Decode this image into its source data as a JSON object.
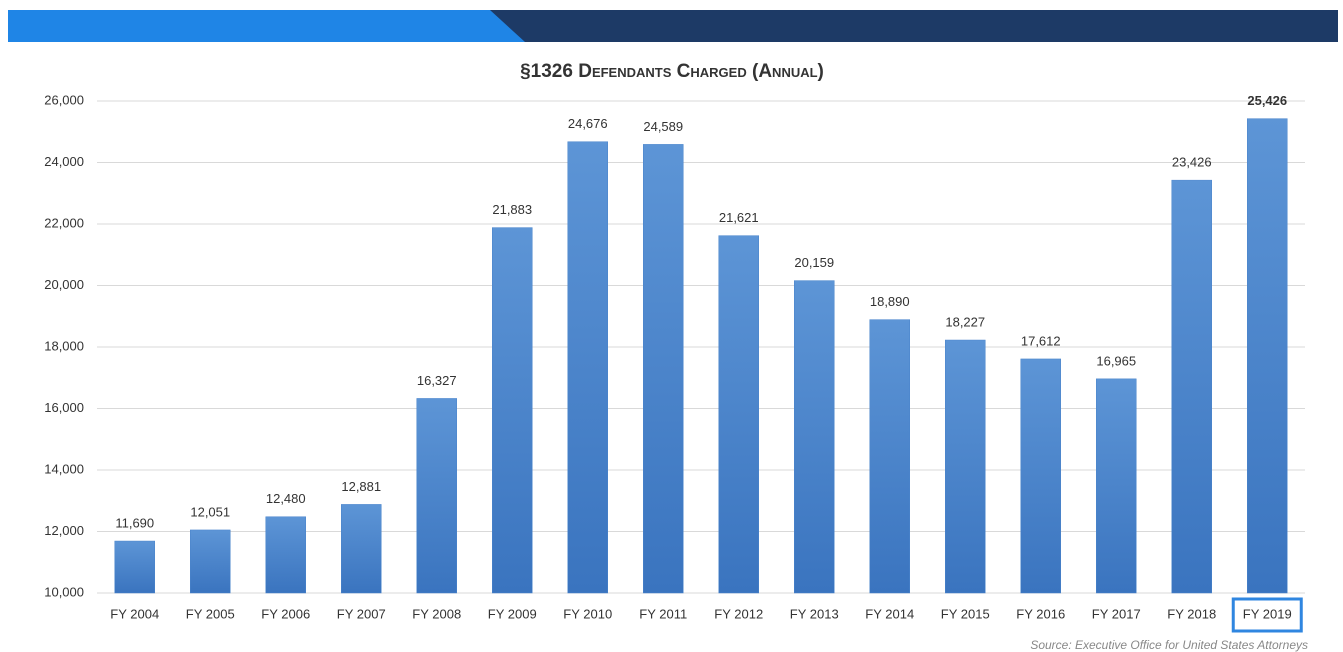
{
  "chart_data": {
    "type": "bar",
    "title": "§1326 Defendants Charged (Annual)",
    "source": "Source: Executive Office for United States Attorneys",
    "categories": [
      "FY 2004",
      "FY 2005",
      "FY 2006",
      "FY 2007",
      "FY 2008",
      "FY 2009",
      "FY 2010",
      "FY 2011",
      "FY 2012",
      "FY 2013",
      "FY 2014",
      "FY 2015",
      "FY 2016",
      "FY 2017",
      "FY 2018",
      "FY 2019"
    ],
    "values": [
      11690,
      12051,
      12480,
      12881,
      16327,
      21883,
      24676,
      24589,
      21621,
      20159,
      18890,
      18227,
      17612,
      16965,
      23426,
      25426
    ],
    "value_labels": [
      "11,690",
      "12,051",
      "12,480",
      "12,881",
      "16,327",
      "21,883",
      "24,676",
      "24,589",
      "21,621",
      "20,159",
      "18,890",
      "18,227",
      "17,612",
      "16,965",
      "23,426",
      "25,426"
    ],
    "color": "#4a84cb",
    "ylim": [
      10000,
      26000
    ],
    "yticks": [
      {
        "value": 10000,
        "label": "10,000"
      },
      {
        "value": 12000,
        "label": "12,000"
      },
      {
        "value": 14000,
        "label": "14,000"
      },
      {
        "value": 16000,
        "label": "16,000"
      },
      {
        "value": 18000,
        "label": "18,000"
      },
      {
        "value": 20000,
        "label": "20,000"
      },
      {
        "value": 22000,
        "label": "22,000"
      },
      {
        "value": 24000,
        "label": "24,000"
      },
      {
        "value": 26000,
        "label": "26,000"
      }
    ],
    "grid": true
  }
}
